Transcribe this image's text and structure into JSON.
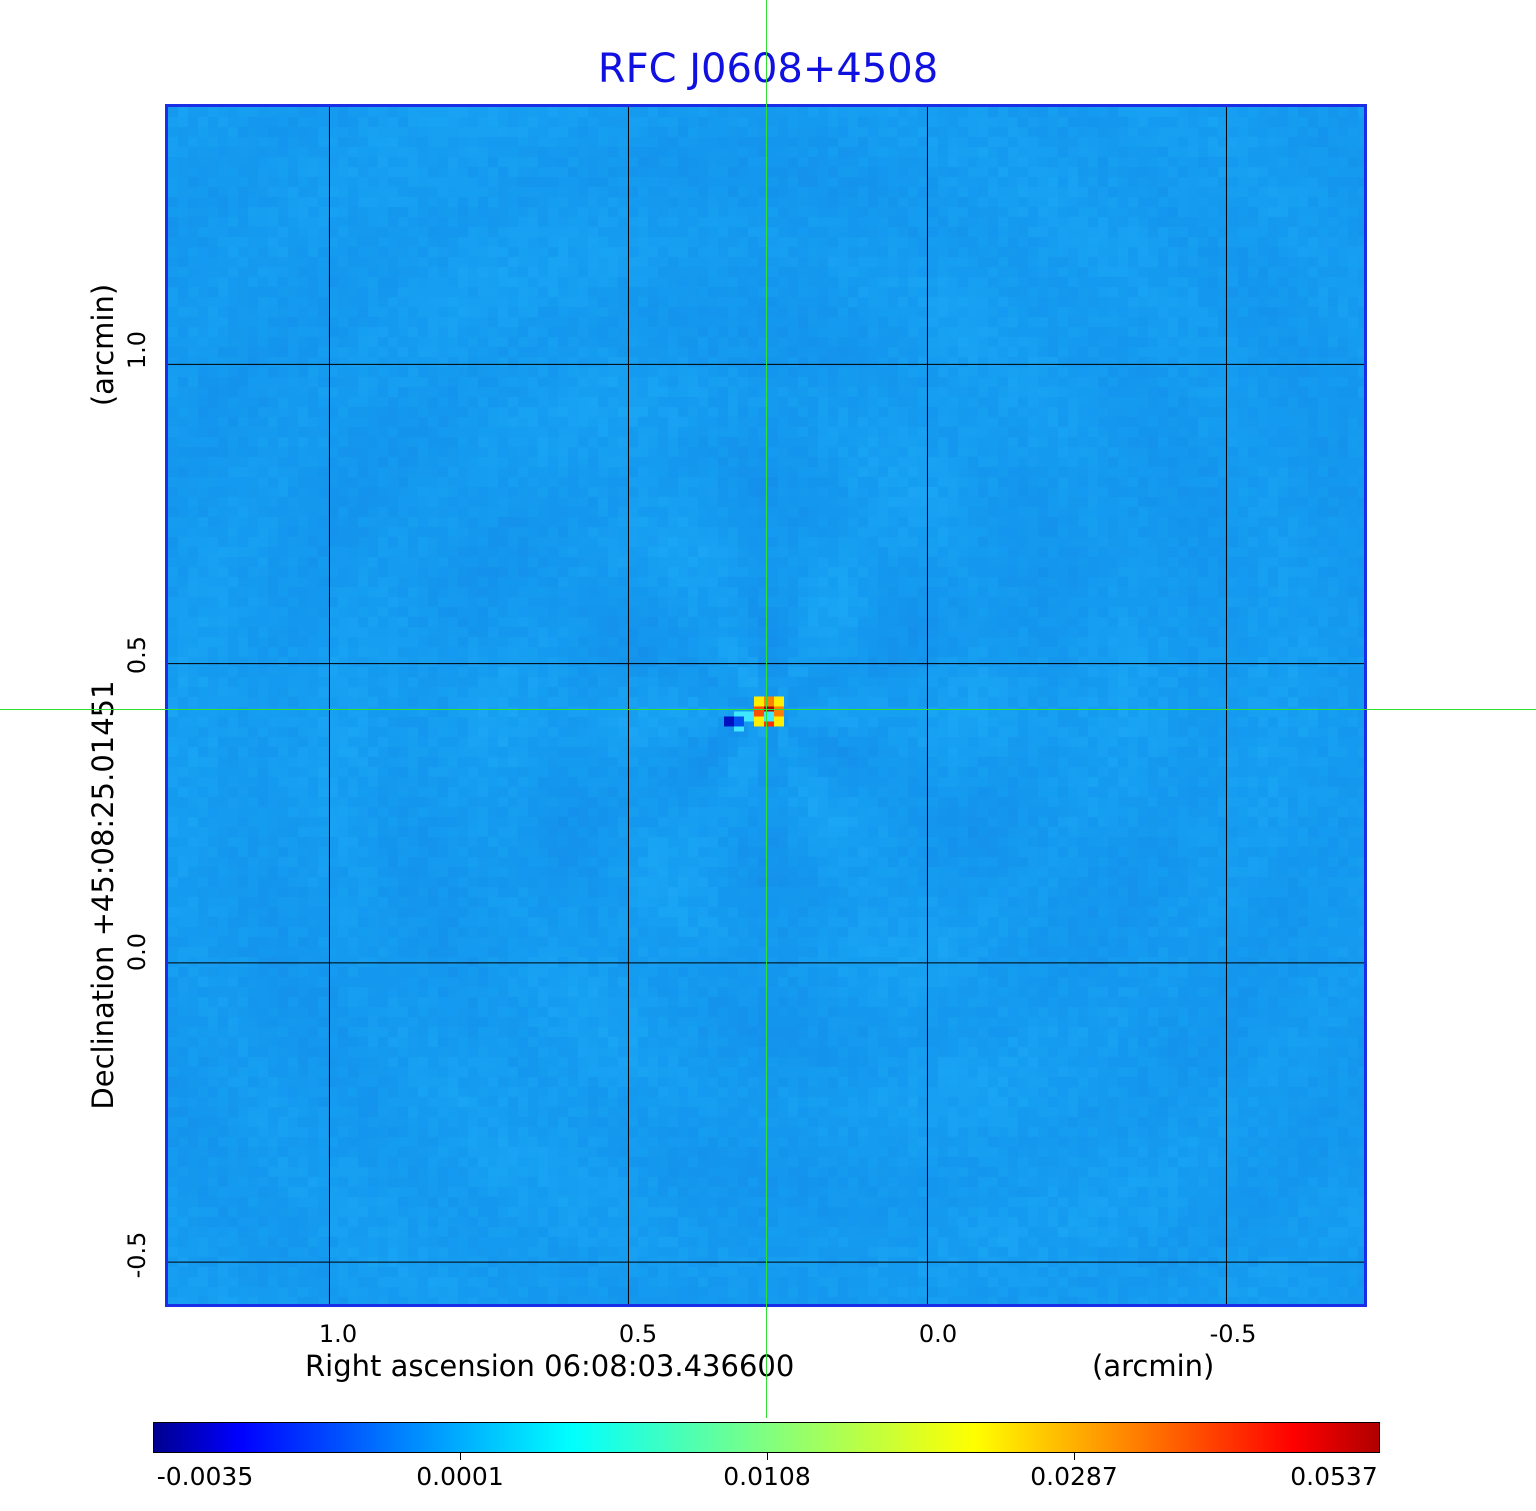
{
  "chart_data": {
    "type": "heatmap",
    "title": "RFC J0608+4508",
    "xlabel": "Right ascension  06:08:03.436600",
    "xunit": "(arcmin)",
    "ylabel": "Declination  +45:08:25.01451",
    "yunit": "(arcmin)",
    "xticks": [
      "1.0",
      "0.5",
      "0.0",
      "-0.5"
    ],
    "yticks": [
      "1.0",
      "0.5",
      "0.0",
      "-0.5"
    ],
    "xlim": [
      1.27,
      -0.73
    ],
    "ylim": [
      -0.57,
      1.43
    ],
    "grid": true,
    "colormap": "jet",
    "colorbar": {
      "ticks": [
        "-0.0035",
        "0.0001",
        "0.0108",
        "0.0287",
        "0.0537"
      ],
      "min": -0.0035,
      "max": 0.0537
    },
    "peak": {
      "x_arcmin": 0.27,
      "y_arcmin": 0.42,
      "value": 0.0537
    },
    "crosshair": {
      "x_arcmin": 0.27,
      "y_arcmin": 0.42,
      "color": "#30e030"
    },
    "background_color": "#1aa0f0",
    "frame_color": "#1a2ee6",
    "title_color": "#1010e0"
  }
}
